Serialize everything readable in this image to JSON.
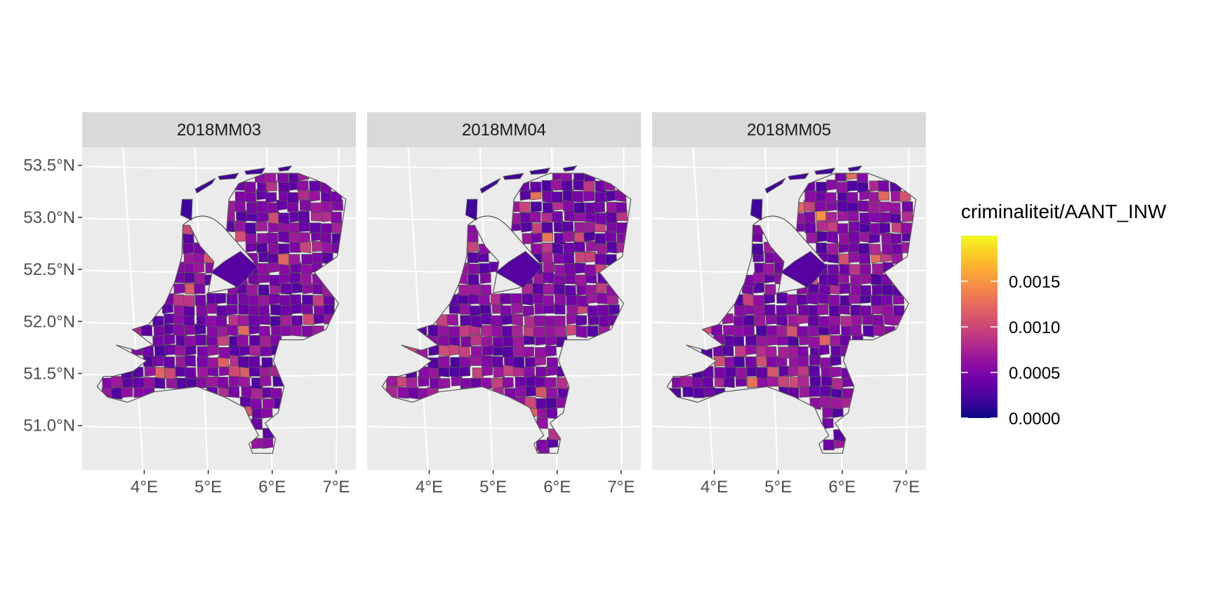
{
  "panels": [
    {
      "title": "2018MM03",
      "seed": 3
    },
    {
      "title": "2018MM04",
      "seed": 4
    },
    {
      "title": "2018MM05",
      "seed": 5
    }
  ],
  "y_axis": {
    "ticks": [
      53.5,
      53.0,
      52.5,
      52.0,
      51.5,
      51.0
    ],
    "labels": [
      "53.5°N",
      "53.0°N",
      "52.5°N",
      "52.0°N",
      "51.5°N",
      "51.0°N"
    ]
  },
  "x_axis": {
    "ticks": [
      4,
      5,
      6,
      7
    ],
    "labels": [
      "4°E",
      "5°E",
      "6°E",
      "7°E"
    ]
  },
  "map_extent": {
    "lon": [
      3.2,
      7.3
    ],
    "lat": [
      50.6,
      53.7
    ]
  },
  "legend": {
    "title": "criminaliteit/AANT_INW",
    "breaks": [
      0.0,
      0.0005,
      0.001,
      0.0015
    ],
    "labels": [
      "0.0000",
      "0.0005",
      "0.0010",
      "0.0015"
    ],
    "range": [
      0.0,
      0.002
    ],
    "palette": [
      "#0d0887",
      "#41049d",
      "#6a00a8",
      "#8f0da4",
      "#b12a90",
      "#cc4778",
      "#e16462",
      "#f2844b",
      "#fca636",
      "#fcce25",
      "#f0f921"
    ]
  },
  "colors": {
    "panel_bg": "#ebebeb",
    "strip_bg": "#d9d9d9",
    "grid": "#ffffff",
    "border": "#555555",
    "water_line": "#333333",
    "axis_text": "#4d4d4d"
  }
}
